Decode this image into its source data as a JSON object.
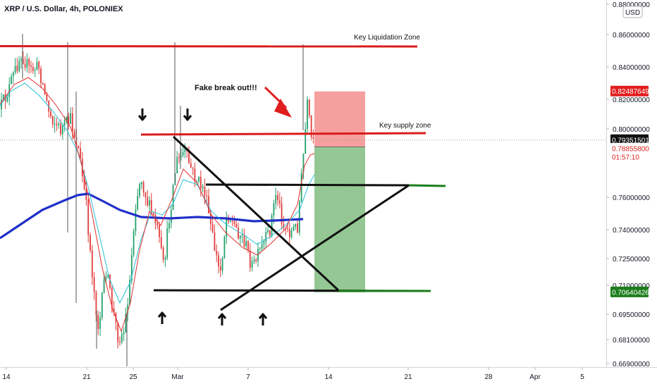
{
  "header": {
    "symbol_title": "XRP / U.S. Dollar, 4h, POLONIEX"
  },
  "currency_badge": "USD",
  "chart_data": {
    "type": "candlestick",
    "x_ticks": [
      "14",
      "21",
      "25",
      "Mar",
      "7",
      "14",
      "21",
      "28",
      "Apr",
      "5"
    ],
    "y_ticks": [
      "0.88000000",
      "0.86000000",
      "0.84000000",
      "0.82000000",
      "0.80000000",
      "0.76000000",
      "0.74000000",
      "0.72500000",
      "0.71000000",
      "0.69500000",
      "0.68100000",
      "0.66900000"
    ],
    "ylim": [
      0.669,
      0.88
    ],
    "price_labels": [
      {
        "value": "0.82487649",
        "price": 0.8249,
        "bg": "#e11f1f",
        "fg": "#ffffff"
      },
      {
        "value": "0.79351501",
        "price": 0.7935,
        "bg": "#111111",
        "fg": "#ffffff"
      },
      {
        "value": "0.78855800",
        "price": 0.7885,
        "bg": "#ffffff",
        "fg": "#e11f1f"
      },
      {
        "value": "01:57:10",
        "price": 0.7835,
        "bg": "#ffffff",
        "fg": "#e11f1f"
      },
      {
        "value": "0.70640426",
        "price": 0.7064,
        "bg": "#1b7d1b",
        "fg": "#ffffff"
      }
    ],
    "annotations": [
      {
        "text": "Key Liquidation Zone",
        "kind": "resistance",
        "price": 0.8525,
        "color": "#d91c1c"
      },
      {
        "text": "Key supply zone",
        "kind": "supply",
        "price": 0.7935,
        "color": "#d91c1c"
      },
      {
        "text": "Fake break out!!!",
        "kind": "callout",
        "color": "#111111"
      }
    ],
    "levels": [
      {
        "name": "support-level",
        "price": 0.7064,
        "color": "#1b7d1b"
      },
      {
        "name": "breakout-level",
        "price": 0.7665,
        "color": "#1b7d1b"
      }
    ],
    "position": {
      "take_profit": 0.8249,
      "entry": 0.7895,
      "stop": 0.7064,
      "profit_color": "#f59a9a",
      "loss_color": "#8ec48e"
    },
    "colors": {
      "up": "#22a06b",
      "down": "#e23b3b",
      "ma_slow": "#1f2fc9",
      "ma_fast": "#28c0d8",
      "ma_red": "#e33030"
    }
  }
}
